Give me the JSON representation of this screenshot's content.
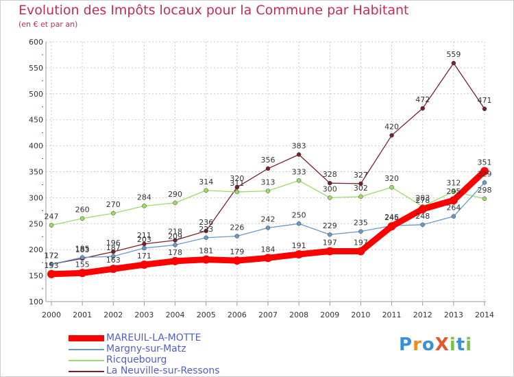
{
  "header": {
    "title": "Evolution des Impôts locaux pour la Commune par Habitant",
    "subtitle": "(en € et par an)"
  },
  "brand": {
    "logo_text": "ProXiti"
  },
  "colors": {
    "title": "#c8285c",
    "legend_text": "#5060c8",
    "grid": "#c8c8c8",
    "axis": "#999999"
  },
  "chart_data": {
    "type": "line",
    "title": "Evolution des Impôts locaux pour la Commune par Habitant",
    "subtitle": "(en € et par an)",
    "xlabel": "",
    "ylabel": "",
    "x": [
      "2000",
      "2001",
      "2002",
      "2003",
      "2004",
      "2005",
      "2006",
      "2007",
      "2008",
      "2009",
      "2010",
      "2011",
      "2012",
      "2013",
      "2014"
    ],
    "ylim": [
      100,
      600
    ],
    "yticks": [
      100,
      150,
      200,
      250,
      300,
      350,
      400,
      450,
      500,
      550,
      600
    ],
    "grid": true,
    "legend_position": "bottom-left",
    "series": [
      {
        "name": "MAREUIL-LA-MOTTE",
        "color": "#ff0000",
        "values": [
          153,
          155,
          163,
          171,
          178,
          181,
          179,
          184,
          191,
          197,
          197,
          245,
          278,
          295,
          351
        ],
        "labels": [
          "153",
          "155",
          "163",
          "171",
          "178",
          "181",
          "179",
          "184",
          "191",
          "197",
          "197",
          "245",
          "278",
          "295",
          "351"
        ]
      },
      {
        "name": "Margny-sur-Matz",
        "color": "#6699cc",
        "values": [
          172,
          185,
          187,
          203,
          209,
          223,
          226,
          242,
          250,
          229,
          235,
          246,
          248,
          264,
          329
        ],
        "labels": [
          "172",
          "185",
          "187",
          "203",
          "209",
          "223",
          "226",
          "242",
          "250",
          "229",
          "235",
          "246",
          "248",
          "264",
          "329"
        ]
      },
      {
        "name": "Ricquebourg",
        "color": "#99dd66",
        "values": [
          247,
          260,
          270,
          284,
          290,
          314,
          311,
          313,
          333,
          300,
          302,
          320,
          283,
          312,
          298
        ],
        "labels": [
          "247",
          "260",
          "270",
          "284",
          "290",
          "314",
          "311",
          "313",
          "333",
          "300",
          "302",
          "320",
          "283",
          "312",
          "298"
        ]
      },
      {
        "name": "La Neuville-sur-Ressons",
        "color": "#7a1f2b",
        "values": [
          172,
          183,
          196,
          211,
          218,
          236,
          320,
          356,
          383,
          328,
          327,
          420,
          472,
          559,
          471
        ],
        "labels": [
          "172",
          "183",
          "196",
          "211",
          "218",
          "236",
          "320",
          "356",
          "383",
          "328",
          "327",
          "420",
          "472",
          "559",
          "471"
        ]
      }
    ]
  }
}
